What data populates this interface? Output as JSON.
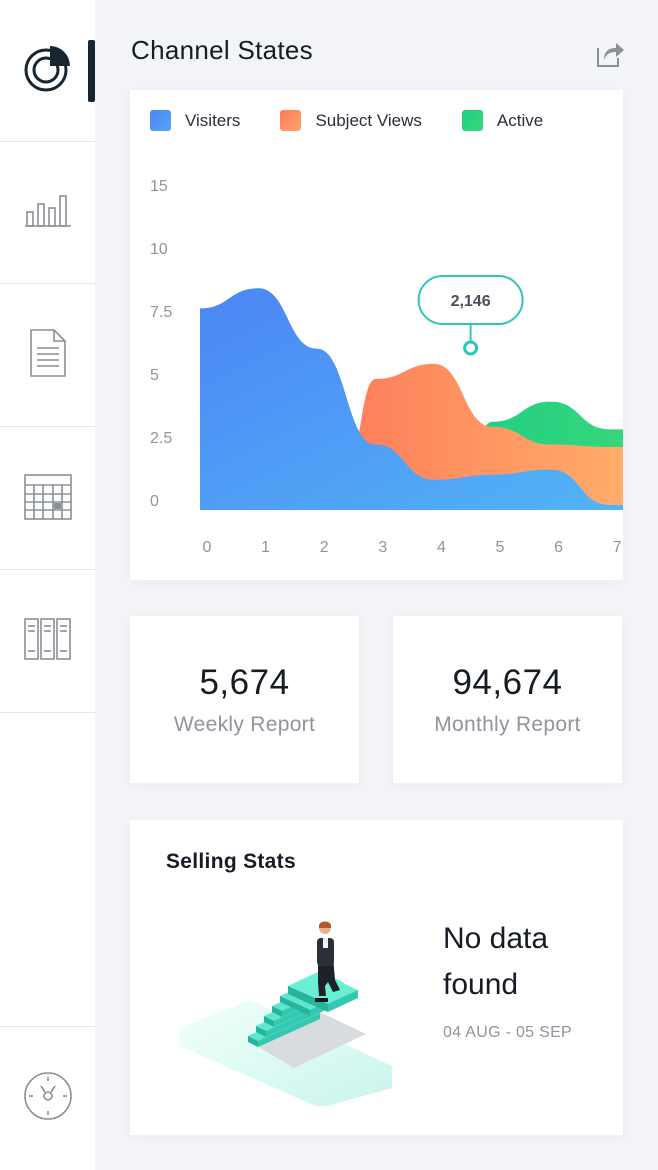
{
  "header": {
    "title": "Channel States",
    "share_icon": "share-icon"
  },
  "sidebar": {
    "items": [
      {
        "icon": "pie-chart-icon",
        "active": true
      },
      {
        "icon": "bar-chart-icon",
        "active": false
      },
      {
        "icon": "document-icon",
        "active": false
      },
      {
        "icon": "calendar-icon",
        "active": false
      },
      {
        "icon": "books-icon",
        "active": false
      }
    ],
    "bottom_icon": "compass-icon"
  },
  "colors": {
    "visiters": "#4b8ff6",
    "subject_views": "#ff8a5a",
    "active": "#2bd27e",
    "accent_dark": "#16252f",
    "tooltip_border": "#2cc6bd"
  },
  "chart": {
    "legend": [
      {
        "label": "Visiters",
        "color": "#4b8ff6"
      },
      {
        "label": "Subject Views",
        "color": "#ff8a5a"
      },
      {
        "label": "Active",
        "color": "#2bd27e"
      }
    ],
    "tooltip": "2,146"
  },
  "chart_data": {
    "type": "area",
    "x": [
      0,
      1,
      2,
      3,
      4,
      5,
      6,
      7
    ],
    "x_tick_labels": [
      "0",
      "1",
      "2",
      "3",
      "4",
      "5",
      "6",
      "7"
    ],
    "y_tick_labels": [
      "0",
      "2.5",
      "5",
      "7.5",
      "10",
      "15"
    ],
    "series": [
      {
        "name": "Visiters",
        "values": [
          8,
          8.8,
          6.4,
          2.6,
          1.2,
          1.4,
          1.6,
          0.2
        ]
      },
      {
        "name": "Subject Views",
        "values": [
          null,
          null,
          null,
          5.2,
          5.8,
          3.3,
          2.6,
          2.5
        ]
      },
      {
        "name": "Active",
        "values": [
          null,
          null,
          null,
          null,
          null,
          3.5,
          4.3,
          3.2
        ]
      }
    ],
    "tooltip": {
      "label": "2,146",
      "x": 3.6,
      "y": 5.8
    }
  },
  "stats": {
    "weekly": {
      "value": "5,674",
      "label": "Weekly Report"
    },
    "monthly": {
      "value": "94,674",
      "label": "Monthly Report"
    }
  },
  "selling": {
    "title": "Selling Stats",
    "empty_message": "No data found",
    "date_range": "04 AUG - 05 SEP",
    "illustration": "man-on-stairs-illustration"
  }
}
